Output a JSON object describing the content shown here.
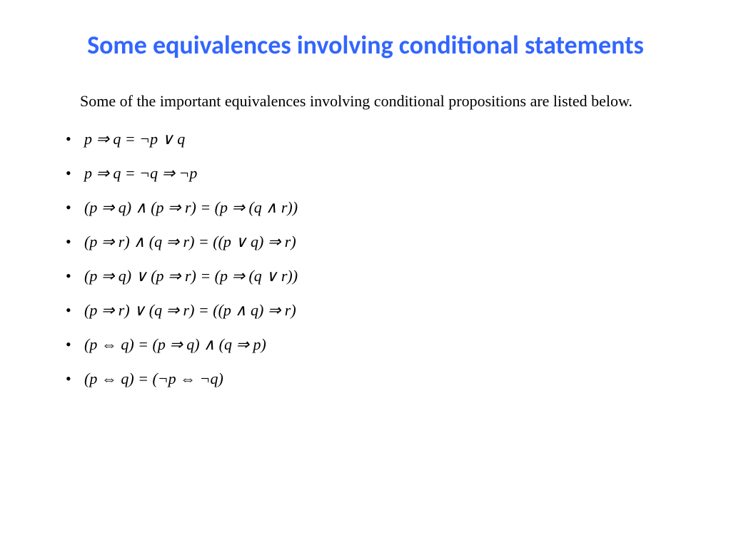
{
  "title": "Some equivalences involving conditional statements",
  "intro": "Some of the important equivalences involving conditional propositions are listed below.",
  "colors": {
    "title_color": "#3366ff",
    "text_color": "#000000",
    "background_color": "#ffffff"
  },
  "typography": {
    "title_fontsize": 36,
    "title_family": "Calibri",
    "title_weight": "bold",
    "body_fontsize": 22,
    "body_family": "Times New Roman",
    "math_style": "italic"
  },
  "equivalences": [
    "p ⇒ q = ¬p ∨ q",
    "p ⇒ q = ¬q ⇒ ¬p",
    "(p ⇒ q) ∧ (p ⇒ r) = (p ⇒ (q ∧ r))",
    "(p ⇒ r) ∧ (q ⇒ r) = ((p ∨ q) ⇒ r)",
    "(p ⇒ q) ∨ (p ⇒ r) = (p ⇒ (q ∨ r))",
    "(p ⇒ r) ∨ (q ⇒ r) = ((p ∧ q) ⇒ r)",
    "(p ⇔ q) = (p ⇒ q) ∧ (q ⇒ p)",
    "(p ⇔ q) = (¬p ⇔ ¬q)"
  ]
}
